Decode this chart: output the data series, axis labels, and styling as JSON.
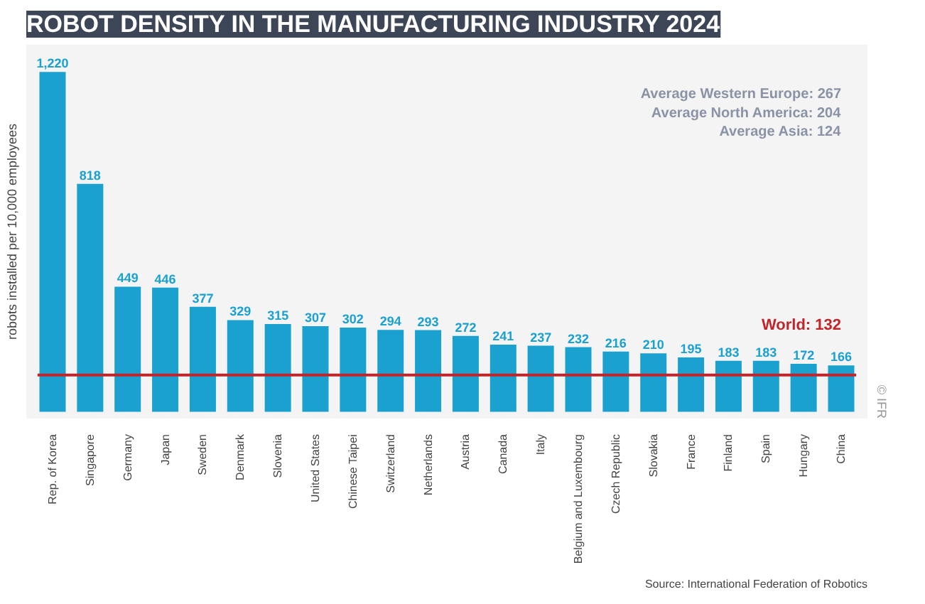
{
  "chart_data": {
    "type": "bar",
    "title": "ROBOT DENSITY IN THE MANUFACTURING INDUSTRY 2024",
    "ylabel": "robots installed per 10,000 employees",
    "categories": [
      "Rep. of Korea",
      "Singapore",
      "Germany",
      "Japan",
      "Sweden",
      "Denmark",
      "Slovenia",
      "United States",
      "Chinese Taipei",
      "Switzerland",
      "Netherlands",
      "Austria",
      "Canada",
      "Italy",
      "Belgium and Luxembourg",
      "Czech Republic",
      "Slovakia",
      "France",
      "Finland",
      "Spain",
      "Hungary",
      "China"
    ],
    "values": [
      1220,
      818,
      449,
      446,
      377,
      329,
      315,
      307,
      302,
      294,
      293,
      272,
      241,
      237,
      232,
      216,
      210,
      195,
      183,
      183,
      172,
      166
    ],
    "value_labels": [
      "1,220",
      "818",
      "449",
      "446",
      "377",
      "329",
      "315",
      "307",
      "302",
      "294",
      "293",
      "272",
      "241",
      "237",
      "232",
      "216",
      "210",
      "195",
      "183",
      "183",
      "172",
      "166"
    ],
    "color": "#1ba1d0",
    "ref_lines": [
      {
        "axis": "y",
        "value": 132,
        "label": "World: 132",
        "color": "#c0252a"
      }
    ],
    "annotations": [
      "Average Western Europe: 267",
      "Average North America: 204",
      "Average Asia: 124",
      "Source: International Federation of Robotics",
      "© IFR"
    ],
    "grid": false
  }
}
